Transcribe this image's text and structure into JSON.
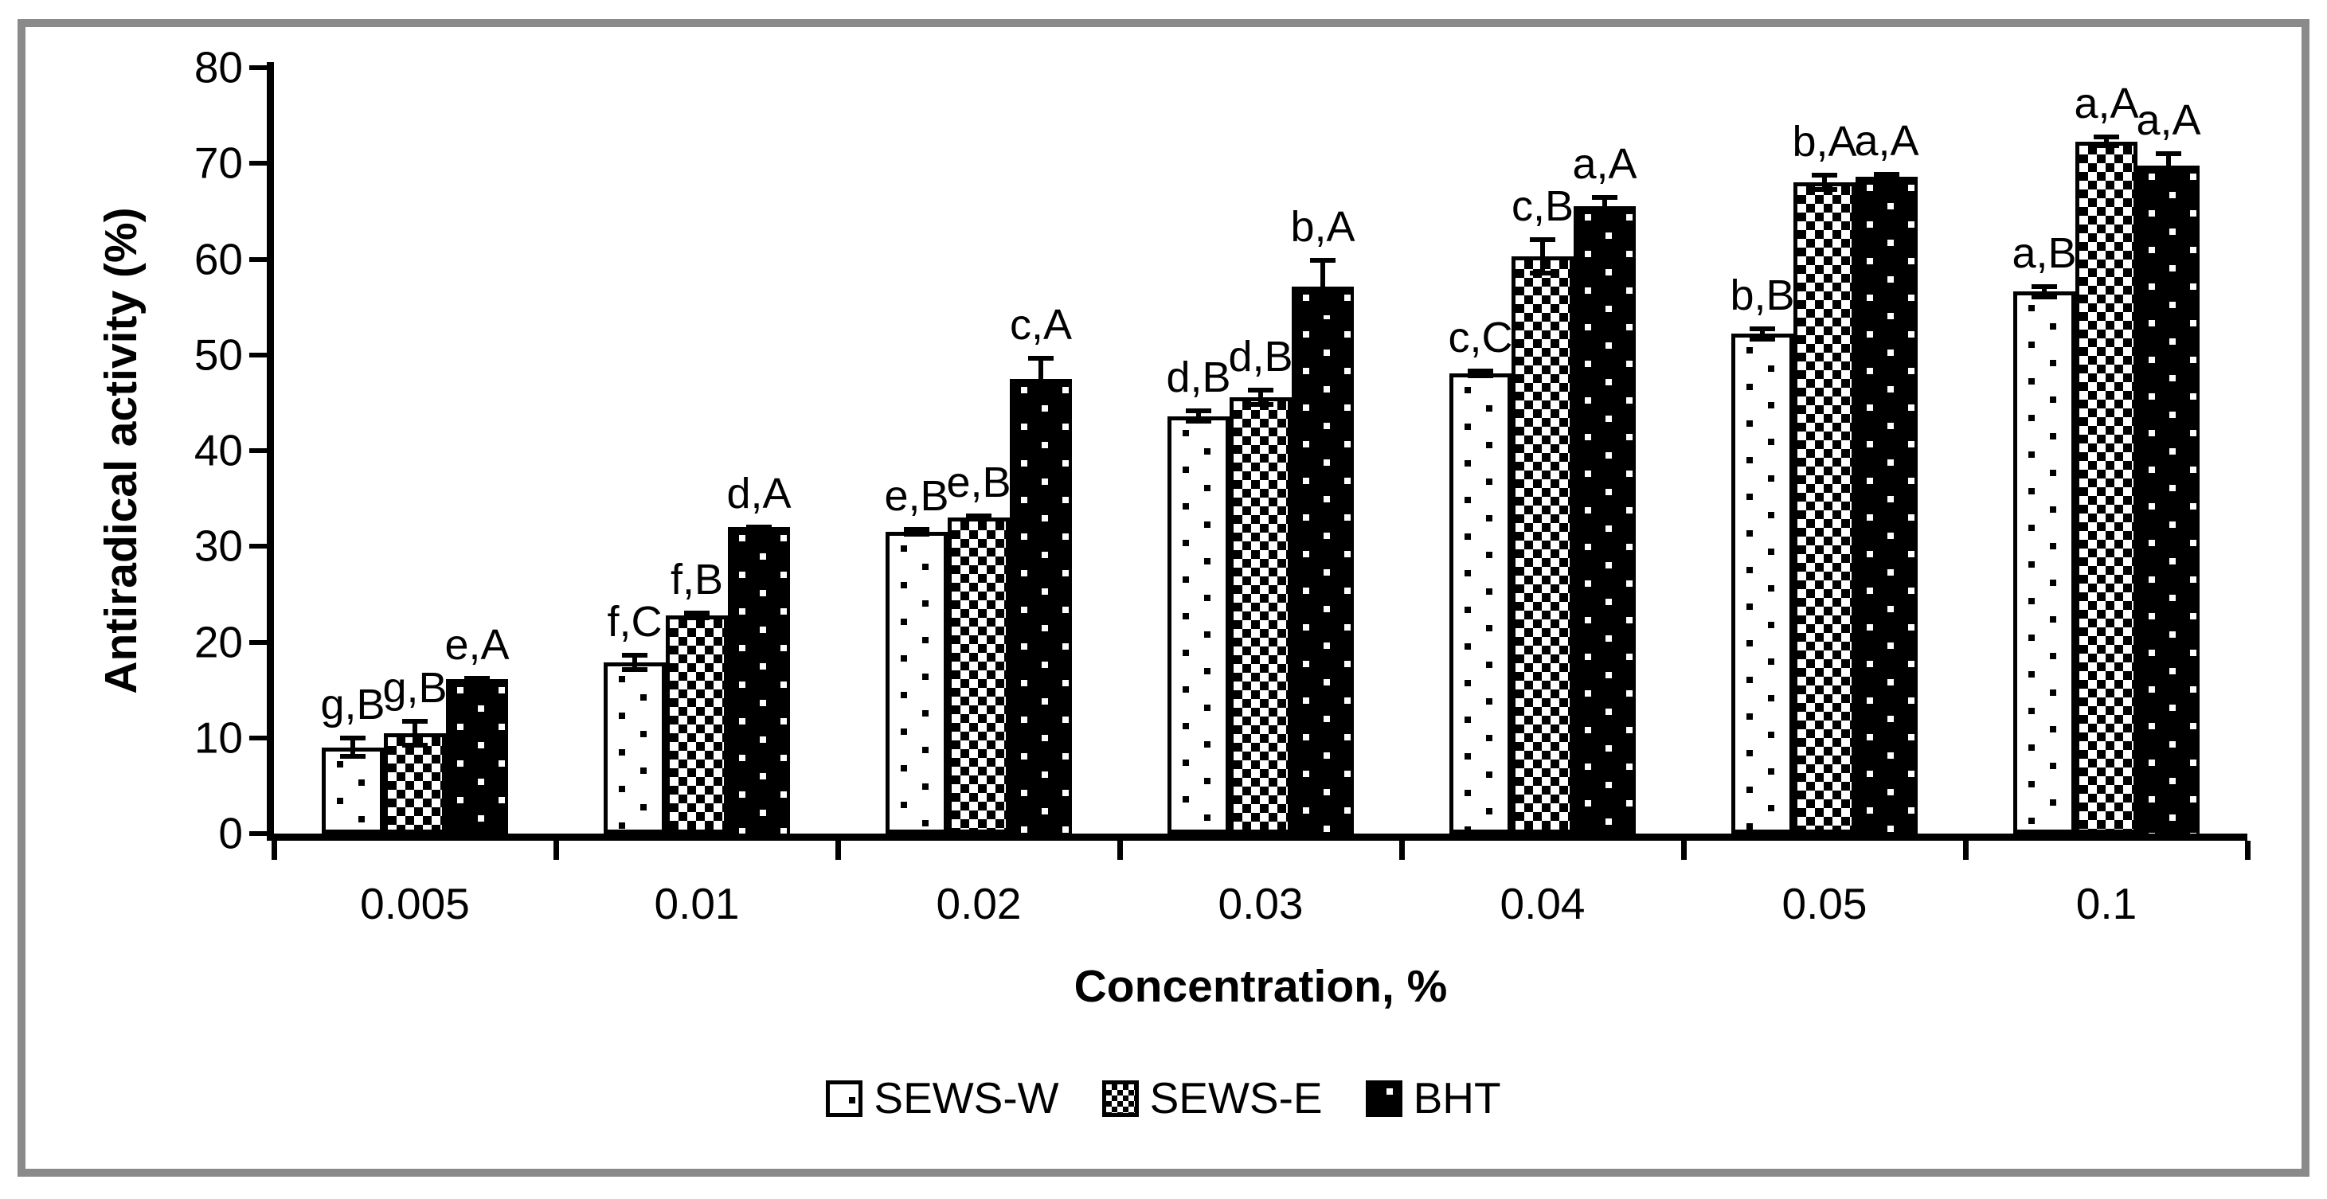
{
  "figure": {
    "border_color": "#8a8a8a",
    "background": "#ffffff",
    "bar_outline_color": "#000000",
    "text_color": "#000000"
  },
  "chart_data": {
    "type": "bar",
    "title": "",
    "xlabel": "Concentration, %",
    "ylabel": "Antiradical activity (%)",
    "ylim": [
      0,
      80
    ],
    "ytick_step": 10,
    "yticks": [
      "0",
      "10",
      "20",
      "30",
      "40",
      "50",
      "60",
      "70",
      "80"
    ],
    "categories": [
      "0.005",
      "0.01",
      "0.02",
      "0.03",
      "0.04",
      "0.05",
      "0.1"
    ],
    "grid": false,
    "legend_position": "bottom",
    "error_bars": true,
    "series": [
      {
        "name": "SEWS-W",
        "pattern": "dotted-white",
        "values": [
          9.0,
          17.9,
          31.5,
          43.6,
          48.1,
          52.2,
          56.6
        ],
        "errors": [
          1.2,
          1.0,
          0.5,
          0.8,
          0.5,
          0.8,
          0.8
        ],
        "sig_labels": [
          "g,B",
          "f,C",
          "e,B",
          "d,B",
          "c,C",
          "b,B",
          "a,B"
        ]
      },
      {
        "name": "SEWS-E",
        "pattern": "checkerboard",
        "values": [
          10.5,
          22.8,
          33.0,
          45.6,
          60.3,
          68.0,
          72.3
        ],
        "errors": [
          1.5,
          0.5,
          0.4,
          1.0,
          2.0,
          1.0,
          0.7
        ],
        "sig_labels": [
          "g,B",
          "f,B",
          "e,B",
          "d,B",
          "c,B",
          "b,A",
          "a,A"
        ]
      },
      {
        "name": "BHT",
        "pattern": "dotted-black",
        "values": [
          16.1,
          32.0,
          47.5,
          57.1,
          65.5,
          68.6,
          69.8
        ],
        "errors": [
          0.4,
          0.3,
          2.4,
          3.0,
          1.2,
          0.5,
          1.5
        ],
        "sig_labels": [
          "e,A",
          "d,A",
          "c,A",
          "b,A",
          "a,A",
          "a,A",
          "a,A"
        ]
      }
    ],
    "legend": [
      "SEWS-W",
      "SEWS-E",
      "BHT"
    ]
  }
}
